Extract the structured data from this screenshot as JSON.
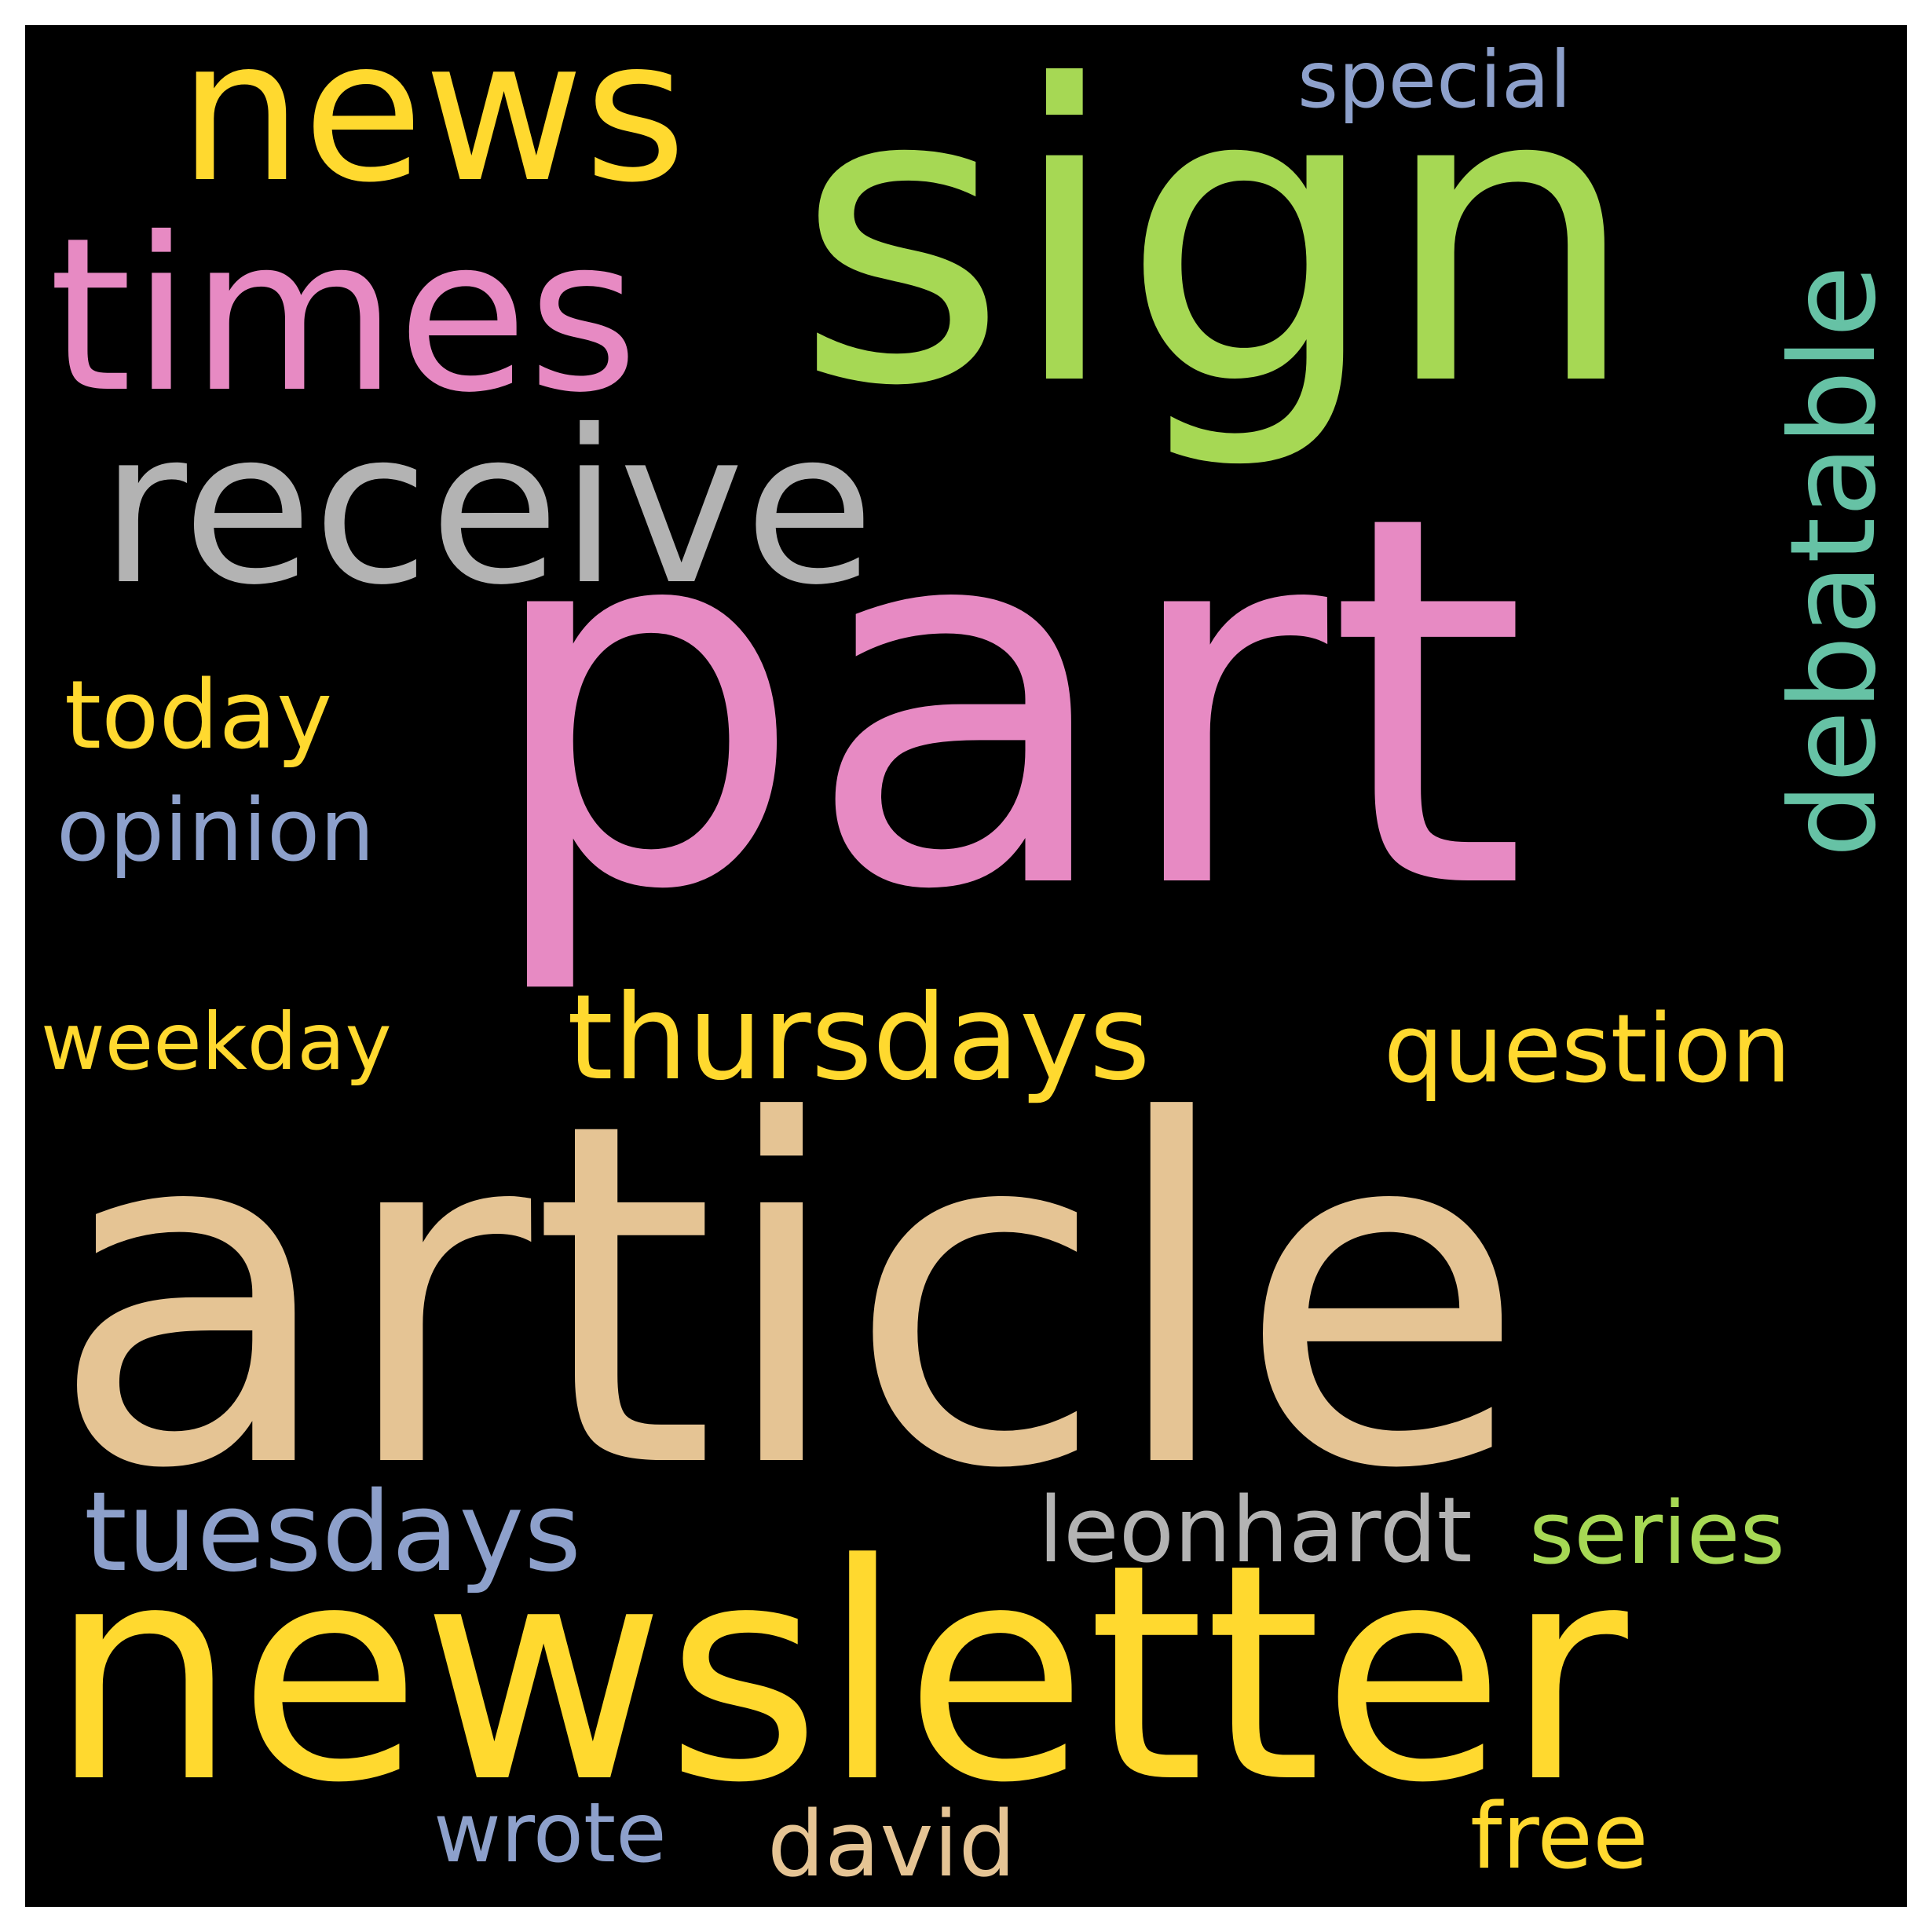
{
  "wordcloud": {
    "background_color": "#000000",
    "words": {
      "article": {
        "text": "article",
        "color": "#E5C494"
      },
      "part": {
        "text": "part",
        "color": "#E78AC3"
      },
      "sign": {
        "text": "sign",
        "color": "#A6D854"
      },
      "newsletter": {
        "text": "newsletter",
        "color": "#FFD92F"
      },
      "receive": {
        "text": "receive",
        "color": "#B3B3B3"
      },
      "times": {
        "text": "times",
        "color": "#E78AC3"
      },
      "news": {
        "text": "news",
        "color": "#FFD92F"
      },
      "debatable": {
        "text": "debatable",
        "color": "#66C2A5"
      },
      "thursdays": {
        "text": "thursdays",
        "color": "#FFD92F"
      },
      "question": {
        "text": "question",
        "color": "#FFD92F"
      },
      "tuesdays": {
        "text": "tuesdays",
        "color": "#8DA0CB"
      },
      "today": {
        "text": "today",
        "color": "#FFD92F"
      },
      "opinion": {
        "text": "opinion",
        "color": "#8DA0CB"
      },
      "weekday": {
        "text": "weekday",
        "color": "#FFD92F"
      },
      "special": {
        "text": "special",
        "color": "#8DA0CB"
      },
      "leonhardt": {
        "text": "leonhardt",
        "color": "#B3B3B3"
      },
      "series": {
        "text": "series",
        "color": "#A6D854"
      },
      "wrote": {
        "text": "wrote",
        "color": "#8DA0CB"
      },
      "david": {
        "text": "david",
        "color": "#E5C494"
      },
      "free": {
        "text": "free",
        "color": "#FFD92F"
      }
    }
  }
}
